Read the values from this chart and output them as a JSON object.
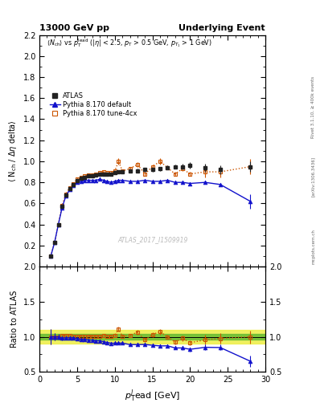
{
  "title_left": "13000 GeV pp",
  "title_right": "Underlying Event",
  "right_label1": "Rivet 3.1.10, ≥ 400k events",
  "right_label2": "[arXiv:1306.3436]",
  "right_label3": "mcplots.cern.ch",
  "watermark": "ATLAS_2017_I1509919",
  "ratio_ylabel": "Ratio to ATLAS",
  "xlabel": "p$_{T}^{l}$ead [GeV]",
  "atlas_x": [
    1.5,
    2.0,
    2.5,
    3.0,
    3.5,
    4.0,
    4.5,
    5.0,
    5.5,
    6.0,
    6.5,
    7.0,
    7.5,
    8.0,
    8.5,
    9.0,
    9.5,
    10.0,
    10.5,
    11.0,
    12.0,
    13.0,
    14.0,
    15.0,
    16.0,
    17.0,
    18.0,
    19.0,
    20.0,
    22.0,
    24.0,
    28.0
  ],
  "atlas_y": [
    0.1,
    0.23,
    0.4,
    0.57,
    0.68,
    0.74,
    0.78,
    0.82,
    0.84,
    0.85,
    0.86,
    0.86,
    0.87,
    0.88,
    0.88,
    0.88,
    0.88,
    0.89,
    0.9,
    0.9,
    0.91,
    0.91,
    0.92,
    0.92,
    0.93,
    0.94,
    0.95,
    0.95,
    0.96,
    0.94,
    0.92,
    0.95
  ],
  "atlas_yerr": [
    0.01,
    0.01,
    0.015,
    0.015,
    0.015,
    0.015,
    0.015,
    0.015,
    0.015,
    0.015,
    0.015,
    0.015,
    0.015,
    0.015,
    0.015,
    0.015,
    0.015,
    0.015,
    0.015,
    0.015,
    0.015,
    0.02,
    0.02,
    0.02,
    0.02,
    0.02,
    0.02,
    0.03,
    0.03,
    0.04,
    0.04,
    0.05
  ],
  "pythia_default_x": [
    1.5,
    2.0,
    2.5,
    3.0,
    3.5,
    4.0,
    4.5,
    5.0,
    5.5,
    6.0,
    6.5,
    7.0,
    7.5,
    8.0,
    8.5,
    9.0,
    9.5,
    10.0,
    10.5,
    11.0,
    12.0,
    13.0,
    14.0,
    15.0,
    16.0,
    17.0,
    18.0,
    19.0,
    20.0,
    22.0,
    24.0,
    28.0
  ],
  "pythia_default_y": [
    0.1,
    0.23,
    0.4,
    0.56,
    0.67,
    0.73,
    0.77,
    0.8,
    0.81,
    0.82,
    0.82,
    0.82,
    0.82,
    0.83,
    0.82,
    0.81,
    0.8,
    0.81,
    0.82,
    0.82,
    0.81,
    0.81,
    0.82,
    0.81,
    0.81,
    0.82,
    0.8,
    0.8,
    0.79,
    0.8,
    0.78,
    0.62
  ],
  "pythia_default_yerr": [
    0.005,
    0.005,
    0.007,
    0.007,
    0.007,
    0.007,
    0.007,
    0.007,
    0.007,
    0.007,
    0.007,
    0.007,
    0.007,
    0.007,
    0.007,
    0.007,
    0.007,
    0.008,
    0.008,
    0.008,
    0.008,
    0.01,
    0.01,
    0.01,
    0.01,
    0.01,
    0.01,
    0.01,
    0.01,
    0.015,
    0.015,
    0.07
  ],
  "pythia_tune4cx_x": [
    1.5,
    2.0,
    2.5,
    3.0,
    3.5,
    4.0,
    4.5,
    5.0,
    5.5,
    6.0,
    6.5,
    7.0,
    7.5,
    8.0,
    8.5,
    9.0,
    9.5,
    10.0,
    10.5,
    11.0,
    12.0,
    13.0,
    14.0,
    15.0,
    16.0,
    17.0,
    18.0,
    19.0,
    20.0,
    22.0,
    24.0,
    28.0
  ],
  "pythia_tune4cx_y": [
    0.1,
    0.23,
    0.4,
    0.58,
    0.69,
    0.75,
    0.79,
    0.83,
    0.85,
    0.86,
    0.87,
    0.87,
    0.88,
    0.89,
    0.9,
    0.89,
    0.89,
    0.91,
    1.0,
    0.91,
    0.93,
    0.97,
    0.88,
    0.95,
    1.0,
    0.94,
    0.88,
    0.93,
    0.88,
    0.9,
    0.9,
    0.95
  ],
  "pythia_tune4cx_yerr": [
    0.005,
    0.005,
    0.007,
    0.007,
    0.007,
    0.007,
    0.007,
    0.007,
    0.007,
    0.007,
    0.007,
    0.007,
    0.007,
    0.007,
    0.007,
    0.007,
    0.007,
    0.008,
    0.03,
    0.008,
    0.01,
    0.02,
    0.02,
    0.02,
    0.03,
    0.02,
    0.02,
    0.02,
    0.02,
    0.05,
    0.05,
    0.07
  ],
  "main_ylim": [
    0.0,
    2.2
  ],
  "main_yticks": [
    0.2,
    0.4,
    0.6,
    0.8,
    1.0,
    1.2,
    1.4,
    1.6,
    1.8,
    2.0,
    2.2
  ],
  "ratio_ylim": [
    0.5,
    2.0
  ],
  "ratio_yticks": [
    0.5,
    1.0,
    1.5,
    2.0
  ],
  "xlim": [
    0,
    30
  ],
  "xticks": [
    0,
    5,
    10,
    15,
    20,
    25,
    30
  ],
  "atlas_color": "#222222",
  "pythia_default_color": "#1111cc",
  "pythia_tune4cx_color": "#cc5500",
  "band_green": "#66bb33",
  "band_yellow": "#eeee44",
  "bg_color": "#ffffff"
}
